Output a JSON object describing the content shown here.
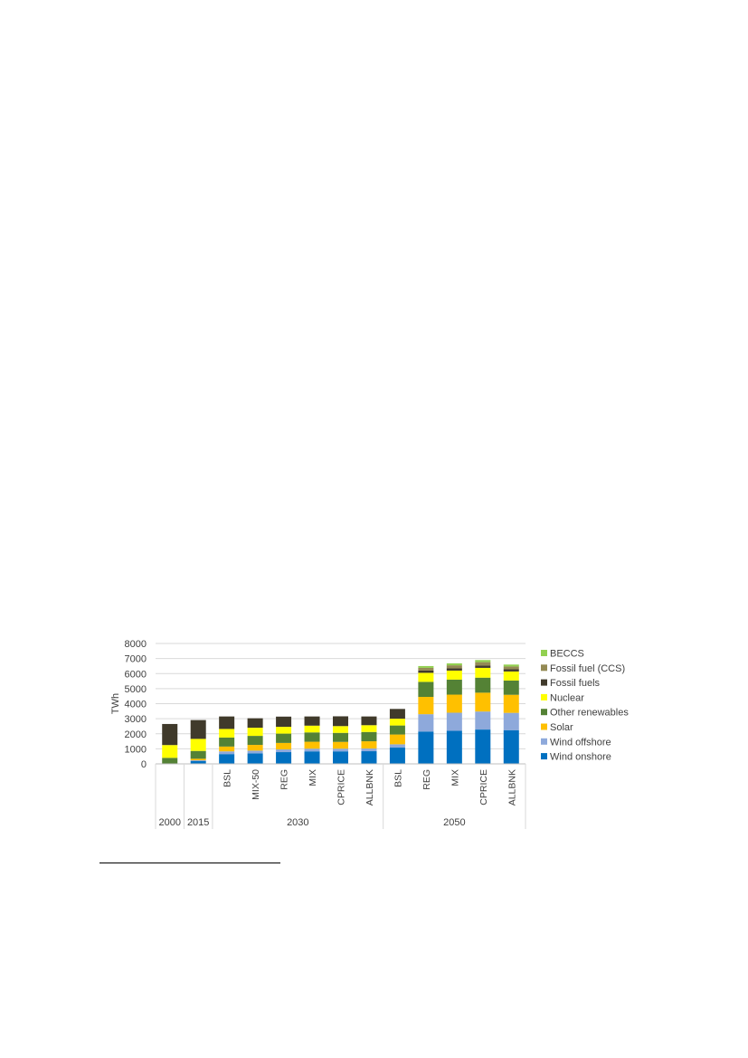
{
  "chart_data": {
    "type": "bar",
    "stacked": true,
    "ylabel": "TWh",
    "ylim": [
      0,
      8000
    ],
    "yticks": [
      0,
      1000,
      2000,
      3000,
      4000,
      5000,
      6000,
      7000,
      8000
    ],
    "grid": true,
    "legend_position": "right",
    "categories": [
      "",
      "",
      "BSL",
      "MIX-50",
      "REG",
      "MIX",
      "CPRICE",
      "ALLBNK",
      "BSL",
      "REG",
      "MIX",
      "CPRICE",
      "ALLBNK"
    ],
    "groups": [
      {
        "label": "2000",
        "count": 1
      },
      {
        "label": "2015",
        "count": 1
      },
      {
        "label": "2030",
        "count": 6
      },
      {
        "label": "2050",
        "count": 5
      }
    ],
    "series": [
      {
        "name": "Wind onshore",
        "color": "#0070C0",
        "values": [
          20,
          180,
          650,
          700,
          780,
          830,
          830,
          840,
          1080,
          2150,
          2200,
          2280,
          2240
        ]
      },
      {
        "name": "Wind offshore",
        "color": "#8EA9DB",
        "values": [
          0,
          60,
          180,
          180,
          180,
          180,
          180,
          180,
          220,
          1150,
          1200,
          1200,
          1150
        ]
      },
      {
        "name": "Solar",
        "color": "#FFC000",
        "values": [
          0,
          100,
          320,
          380,
          430,
          460,
          450,
          480,
          650,
          1150,
          1200,
          1250,
          1200
        ]
      },
      {
        "name": "Other renewables",
        "color": "#548235",
        "values": [
          380,
          520,
          600,
          600,
          620,
          620,
          600,
          620,
          600,
          1000,
          1000,
          1000,
          950
        ]
      },
      {
        "name": "Nuclear",
        "color": "#FFFF00",
        "values": [
          850,
          800,
          570,
          540,
          450,
          450,
          450,
          450,
          450,
          600,
          600,
          650,
          600
        ]
      },
      {
        "name": "Fossil fuels",
        "color": "#403A2B",
        "values": [
          1400,
          1250,
          830,
          630,
          680,
          610,
          650,
          580,
          650,
          150,
          150,
          150,
          150
        ]
      },
      {
        "name": "Fossil fuel (CCS)",
        "color": "#948A54",
        "values": [
          0,
          0,
          0,
          0,
          0,
          0,
          0,
          0,
          0,
          180,
          200,
          230,
          180
        ]
      },
      {
        "name": "BECCS",
        "color": "#92D050",
        "values": [
          0,
          0,
          0,
          0,
          0,
          0,
          0,
          0,
          0,
          120,
          130,
          140,
          130
        ]
      }
    ]
  }
}
